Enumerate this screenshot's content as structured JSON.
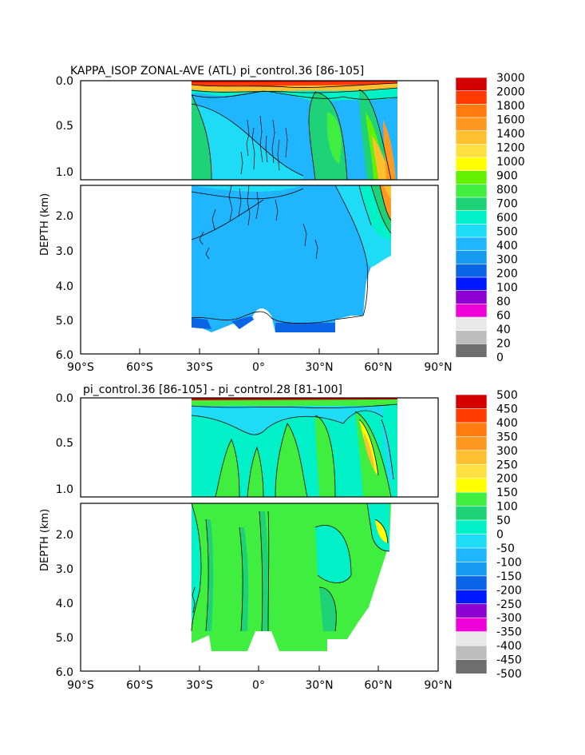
{
  "chart_data": [
    {
      "type": "heatmap",
      "title": "KAPPA_ISOP ZONAL-AVE (ATL) pi_control.36 [86-105]",
      "ylabel": "DEPTH (km)",
      "xlabel": "",
      "x_ticks": [
        "90°S",
        "60°S",
        "30°S",
        "0°",
        "30°N",
        "60°N",
        "90°N"
      ],
      "y_ticks_upper": [
        "0.0",
        "0.5",
        "1.0"
      ],
      "y_ticks_lower": [
        "2.0",
        "3.0",
        "4.0",
        "5.0",
        "6.0"
      ],
      "xlim": [
        -90,
        90
      ],
      "ylim_km": [
        0,
        6
      ],
      "colorbar_levels": [
        "0",
        "20",
        "40",
        "60",
        "80",
        "100",
        "200",
        "300",
        "400",
        "500",
        "600",
        "700",
        "800",
        "900",
        "1000",
        "1200",
        "1400",
        "1600",
        "1800",
        "2000",
        "3000"
      ],
      "colorbar_colors": [
        "#6e6e6e",
        "#bdbdbd",
        "#e8e8e8",
        "#ee00d8",
        "#8c00d0",
        "#0018ff",
        "#0a64e6",
        "#149bf0",
        "#1fb6ff",
        "#1edcf5",
        "#00f0c8",
        "#1ed278",
        "#40ee40",
        "#64f000",
        "#ffff00",
        "#ffe040",
        "#ffc030",
        "#ff9820",
        "#ff7b10",
        "#ff3a00",
        "#d40000"
      ],
      "grid": false,
      "legend": "right colorbar"
    },
    {
      "type": "heatmap",
      "title": "pi_control.36 [86-105] - pi_control.28 [81-100]",
      "ylabel": "DEPTH (km)",
      "xlabel": "",
      "x_ticks": [
        "90°S",
        "60°S",
        "30°S",
        "0°",
        "30°N",
        "60°N",
        "90°N"
      ],
      "y_ticks_upper": [
        "0.0",
        "0.5",
        "1.0"
      ],
      "y_ticks_lower": [
        "2.0",
        "3.0",
        "4.0",
        "5.0",
        "6.0"
      ],
      "xlim": [
        -90,
        90
      ],
      "ylim_km": [
        0,
        6
      ],
      "colorbar_levels": [
        "500",
        "450",
        "400",
        "350",
        "300",
        "250",
        "200",
        "150",
        "100",
        "50",
        "0",
        "-50",
        "-100",
        "-150",
        "-200",
        "-250",
        "-300",
        "-350",
        "-400",
        "-450",
        "-500"
      ],
      "colorbar_colors": [
        "#d40000",
        "#ff3a00",
        "#ff7b10",
        "#ff9820",
        "#ffc030",
        "#ffe040",
        "#ffff00",
        "#40ee40",
        "#1ed278",
        "#00f0c8",
        "#1edcf5",
        "#1fb6ff",
        "#149bf0",
        "#0a64e6",
        "#0018ff",
        "#8c00d0",
        "#ee00d8",
        "#e8e8e8",
        "#bdbdbd",
        "#6e6e6e"
      ],
      "grid": false,
      "legend": "right colorbar"
    }
  ]
}
